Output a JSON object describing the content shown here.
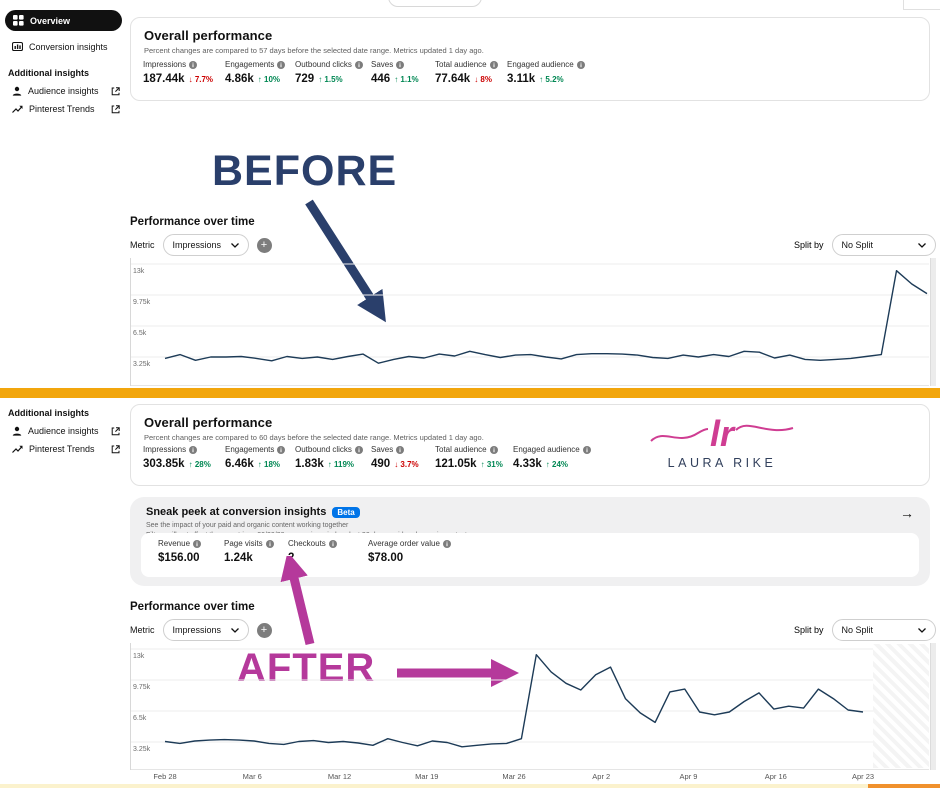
{
  "colors": {
    "navy_annotation": "#2a3f6b",
    "magenta_annotation": "#b5399b",
    "chart_line": "#1d3b57",
    "divider_orange": "#f2a60d",
    "positive_green": "#008753",
    "negative_red": "#cc0000",
    "beta_blue": "#0074e8",
    "logo_pink": "#cf3d92",
    "logo_navy": "#32405c"
  },
  "sidebar_top": {
    "overview": "Overview",
    "conversion": "Conversion insights",
    "additional_header": "Additional insights",
    "audience": "Audience insights",
    "trends": "Pinterest Trends"
  },
  "sidebar_bottom": {
    "additional_header": "Additional insights",
    "audience": "Audience insights",
    "trends": "Pinterest Trends"
  },
  "before_section": {
    "annotation": "BEFORE",
    "overall": {
      "title": "Overall performance",
      "subtitle": "Percent changes are compared to 57 days before the selected date range. Metrics updated 1 day ago.",
      "metrics": [
        {
          "label": "Impressions",
          "value": "187.44k",
          "dir": "down",
          "arrow": "↓",
          "delta": "7.7%"
        },
        {
          "label": "Engagements",
          "value": "4.86k",
          "dir": "up",
          "arrow": "↑",
          "delta": "10%"
        },
        {
          "label": "Outbound clicks",
          "value": "729",
          "dir": "up",
          "arrow": "↑",
          "delta": "1.5%"
        },
        {
          "label": "Saves",
          "value": "446",
          "dir": "up",
          "arrow": "↑",
          "delta": "1.1%"
        },
        {
          "label": "Total audience",
          "value": "77.64k",
          "dir": "down",
          "arrow": "↓",
          "delta": "8%"
        },
        {
          "label": "Engaged audience",
          "value": "3.11k",
          "dir": "up",
          "arrow": "↑",
          "delta": "5.2%"
        }
      ]
    },
    "perf_title": "Performance over time",
    "metric_label": "Metric",
    "metric_value": "Impressions",
    "add_label": "+",
    "split_label": "Split by",
    "split_value": "No Split"
  },
  "after_section": {
    "annotation": "AFTER",
    "overall": {
      "title": "Overall performance",
      "subtitle": "Percent changes are compared to 60 days before the selected date range. Metrics updated 1 day ago.",
      "metrics": [
        {
          "label": "Impressions",
          "value": "303.85k",
          "dir": "up",
          "arrow": "↑",
          "delta": "28%"
        },
        {
          "label": "Engagements",
          "value": "6.46k",
          "dir": "up",
          "arrow": "↑",
          "delta": "18%"
        },
        {
          "label": "Outbound clicks",
          "value": "1.83k",
          "dir": "up",
          "arrow": "↑",
          "delta": "119%"
        },
        {
          "label": "Saves",
          "value": "490",
          "dir": "down",
          "arrow": "↓",
          "delta": "3.7%"
        },
        {
          "label": "Total audience",
          "value": "121.05k",
          "dir": "up",
          "arrow": "↑",
          "delta": "31%"
        },
        {
          "label": "Engaged audience",
          "value": "4.33k",
          "dir": "up",
          "arrow": "↑",
          "delta": "24%"
        }
      ]
    },
    "logo": {
      "script": "lr",
      "name": "LAURA RIKE"
    },
    "sneak": {
      "title": "Sneak peek at conversion insights",
      "badge": "Beta",
      "line1": "See the impact of your paid and organic content working together",
      "line2": "Filters will not affect these metrics • 30/30/30 conversion window, last 30 days, paid and organic content",
      "metrics": [
        {
          "label": "Revenue",
          "value": "$156.00"
        },
        {
          "label": "Page visits",
          "value": "1.24k"
        },
        {
          "label": "Checkouts",
          "value": "2"
        },
        {
          "label": "Average order value",
          "value": "$78.00"
        }
      ],
      "open_arrow": "→"
    },
    "perf_title": "Performance over time",
    "metric_label": "Metric",
    "metric_value": "Impressions",
    "add_label": "+",
    "split_label": "Split by",
    "split_value": "No Split"
  },
  "chart_data": [
    {
      "type": "line",
      "title": "Performance over time (before)",
      "ylabel": "Impressions",
      "y_ticks": [
        "13k",
        "9.75k",
        "6.5k",
        "3.25k"
      ],
      "ylim": [
        0,
        13000
      ],
      "grid": true,
      "x_labels": [],
      "series": [
        {
          "name": "Impressions",
          "values": [
            3100,
            3500,
            2900,
            3250,
            3250,
            3300,
            3100,
            2850,
            3300,
            3100,
            3250,
            3000,
            3300,
            3550,
            2600,
            3000,
            3300,
            3150,
            3550,
            3350,
            3850,
            3500,
            3200,
            3450,
            3500,
            3250,
            3050,
            3500,
            3600,
            3600,
            3550,
            3450,
            3200,
            3100,
            3450,
            3250,
            3500,
            3300,
            3850,
            3750,
            3150,
            3450,
            3000,
            2900,
            3000,
            3100,
            3300,
            3500,
            12300,
            10900,
            9900
          ]
        }
      ]
    },
    {
      "type": "line",
      "title": "Performance over time (after)",
      "ylabel": "Impressions",
      "y_ticks": [
        "13k",
        "9.75k",
        "6.5k",
        "3.25k"
      ],
      "ylim": [
        0,
        13000
      ],
      "grid": true,
      "x_labels": [
        "Feb 28",
        "Mar 6",
        "Mar 12",
        "Mar 19",
        "Mar 26",
        "Apr 2",
        "Apr 9",
        "Apr 16",
        "Apr 23"
      ],
      "series": [
        {
          "name": "Impressions",
          "values": [
            3300,
            3100,
            3350,
            3450,
            3500,
            3450,
            3350,
            3100,
            3000,
            3300,
            3400,
            3200,
            3300,
            3150,
            2900,
            3600,
            3200,
            2850,
            3350,
            3200,
            2750,
            2900,
            3050,
            3100,
            3600,
            12400,
            10600,
            9400,
            8700,
            10300,
            11100,
            7800,
            6300,
            5300,
            8500,
            8800,
            6400,
            6100,
            6400,
            7500,
            8400,
            6700,
            7000,
            6800,
            8800,
            7800,
            6600,
            6400
          ]
        }
      ]
    }
  ]
}
